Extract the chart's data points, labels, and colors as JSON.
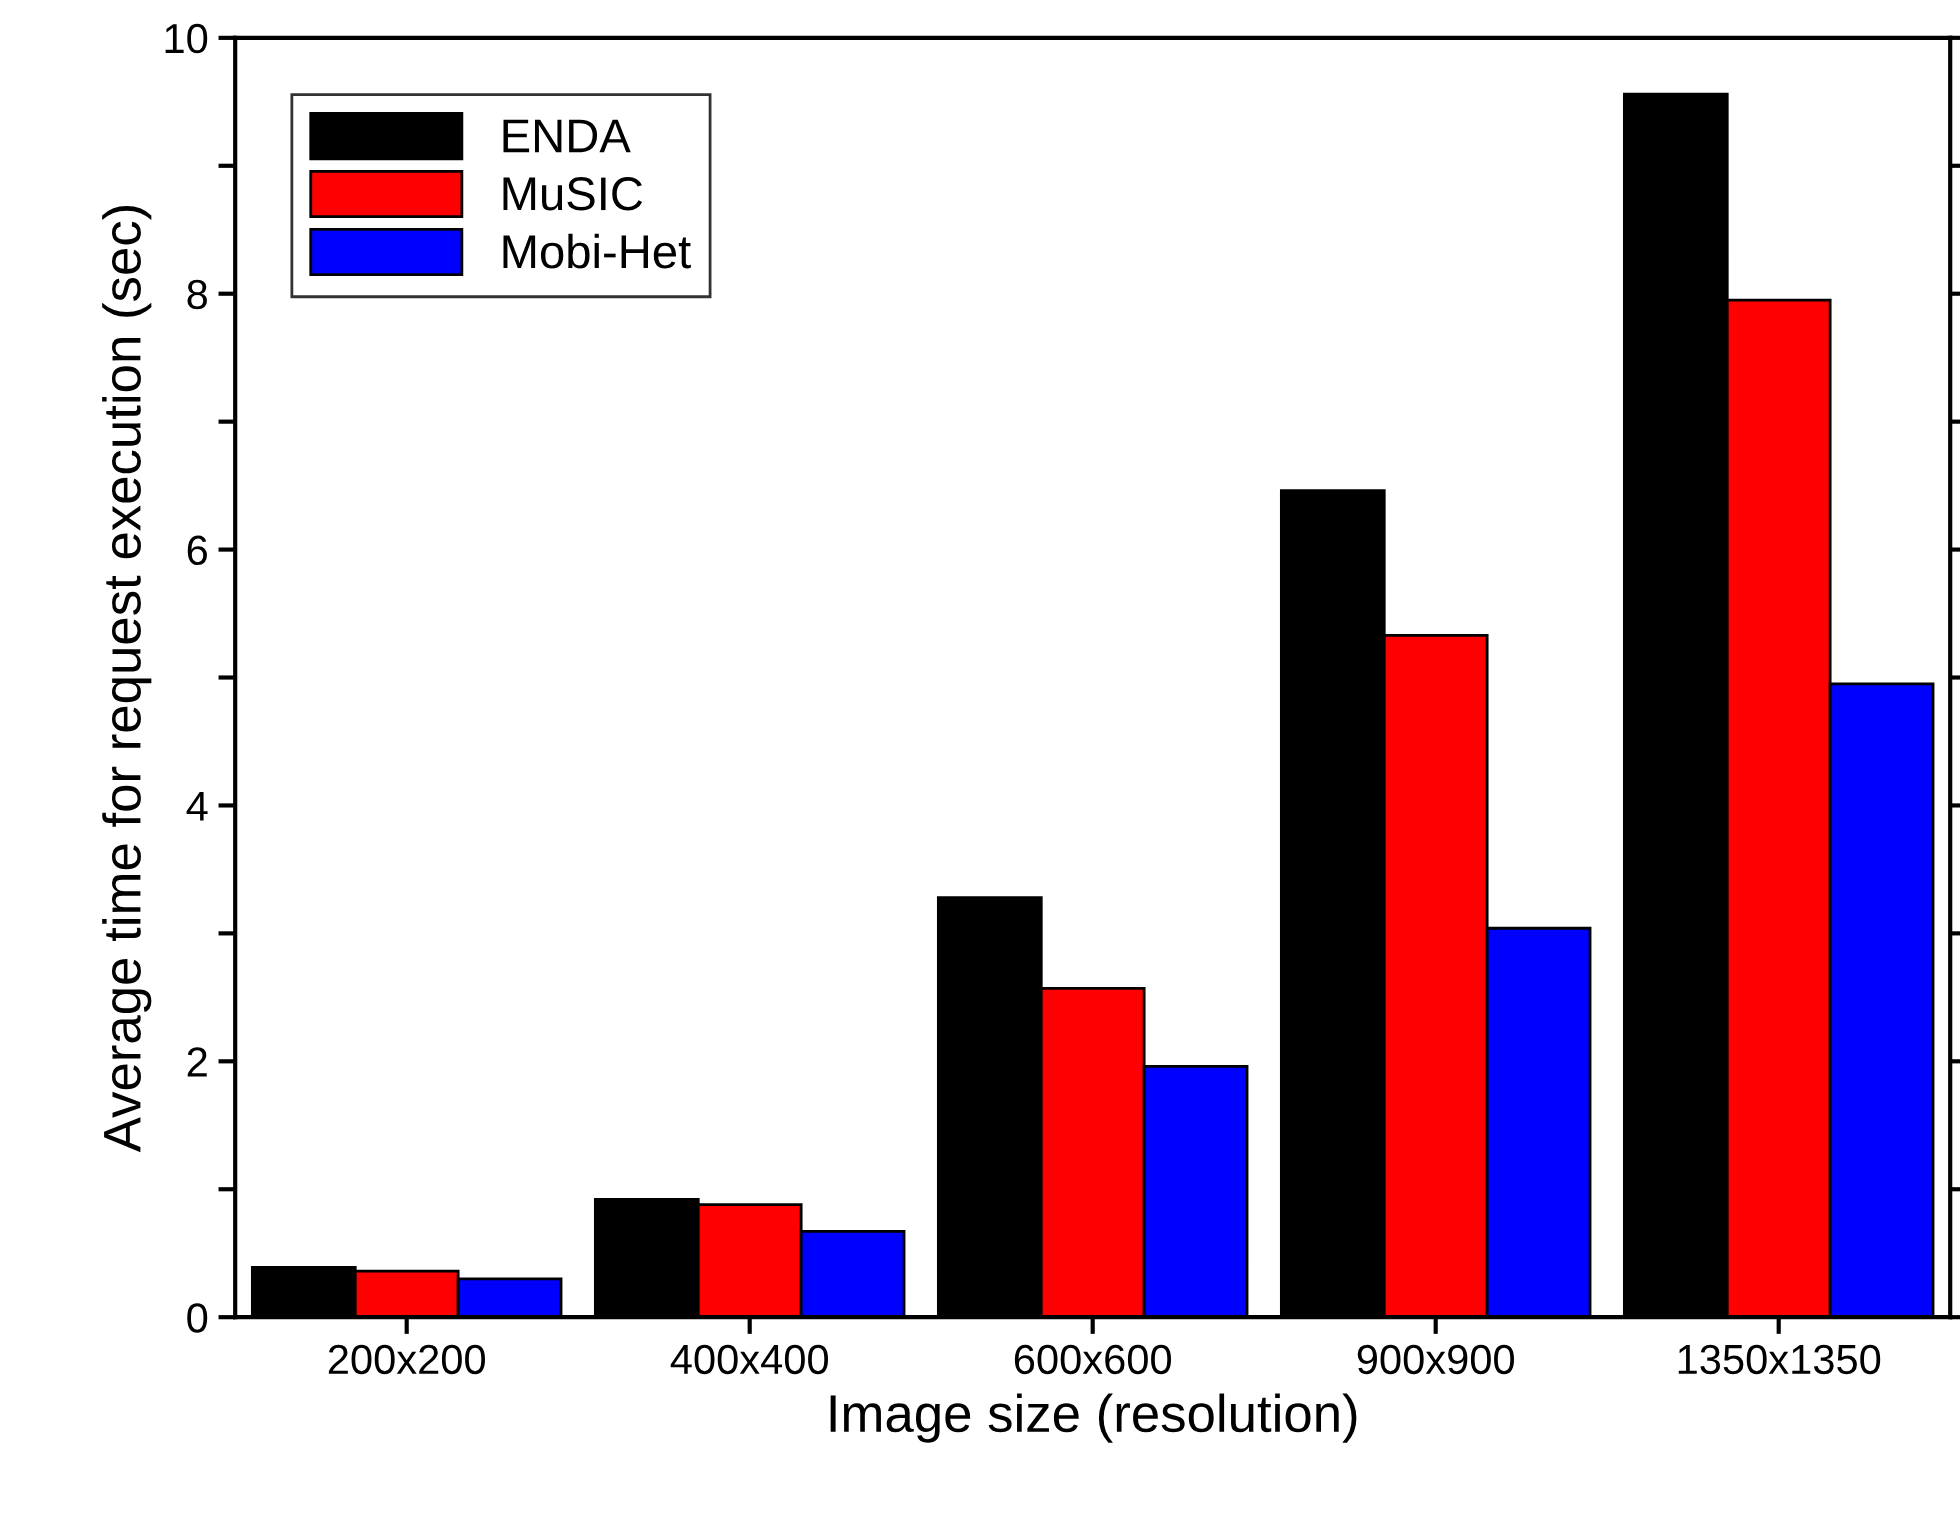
{
  "chart_data": {
    "type": "bar",
    "xlabel": "Image size (resolution)",
    "ylabel": "Average time for request execution (sec)",
    "categories": [
      "200x200",
      "400x400",
      "600x600",
      "900x900",
      "1350x1350"
    ],
    "series": [
      {
        "name": "ENDA",
        "color": "#000000",
        "values": [
          0.39,
          0.92,
          3.28,
          6.46,
          9.56
        ]
      },
      {
        "name": "MuSIC",
        "color": "#ff0000",
        "values": [
          0.36,
          0.88,
          2.57,
          5.33,
          7.95
        ]
      },
      {
        "name": "Mobi-Het",
        "color": "#0000ff",
        "values": [
          0.3,
          0.67,
          1.96,
          3.04,
          4.95
        ]
      }
    ],
    "ylim": [
      0,
      10
    ],
    "yticks": [
      0,
      {
        "value": 1,
        "label": null
      },
      2,
      {
        "value": 3,
        "label": null
      },
      4,
      {
        "value": 5,
        "label": null
      },
      6,
      {
        "value": 7,
        "label": null
      },
      8,
      {
        "value": 9,
        "label": null
      },
      10
    ],
    "grid": false,
    "legend": "top left"
  }
}
